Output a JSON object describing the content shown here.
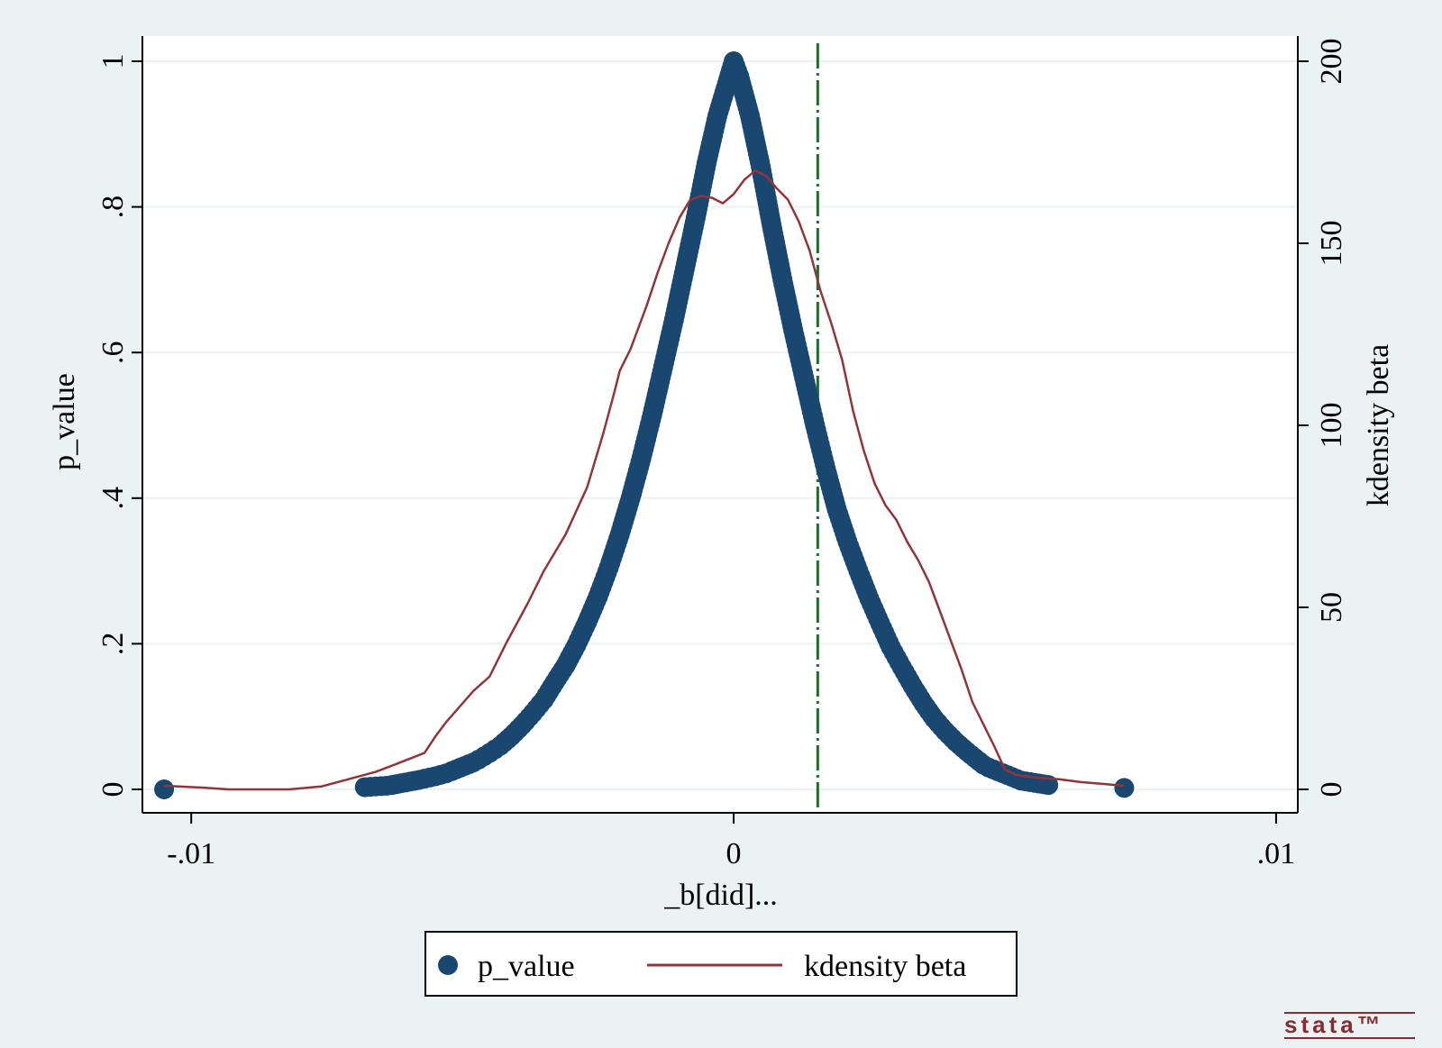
{
  "chart_data": {
    "type": "scatter",
    "xlabel": "_b[did]...",
    "ylabel_left": "p_value",
    "ylabel_right": "kdensity beta",
    "xlim": [
      -0.0109,
      0.0104
    ],
    "ylim_left": [
      0,
      1
    ],
    "ylim_right": [
      0,
      200
    ],
    "x_ticks": [
      {
        "value": -0.01,
        "label": "-.01"
      },
      {
        "value": 0,
        "label": "0"
      },
      {
        "value": 0.01,
        "label": ".01"
      }
    ],
    "y_ticks_left": [
      {
        "value": 0,
        "label": "0"
      },
      {
        "value": 0.2,
        "label": ".2"
      },
      {
        "value": 0.4,
        "label": ".4"
      },
      {
        "value": 0.6,
        "label": ".6"
      },
      {
        "value": 0.8,
        "label": ".8"
      },
      {
        "value": 1,
        "label": "1"
      }
    ],
    "y_ticks_right": [
      {
        "value": 0,
        "label": "0"
      },
      {
        "value": 50,
        "label": "50"
      },
      {
        "value": 100,
        "label": "100"
      },
      {
        "value": 150,
        "label": "150"
      },
      {
        "value": 200,
        "label": "200"
      }
    ],
    "grid": true,
    "reference_line_x": 0.00155,
    "series": [
      {
        "name": "p_value",
        "type": "scatter",
        "axis": "left",
        "color": "#1a476f",
        "points": [
          [
            -0.0105,
            0.0
          ],
          [
            -0.0068,
            0.003
          ],
          [
            -0.0064,
            0.005
          ],
          [
            -0.0063,
            0.006
          ],
          [
            -0.0058,
            0.013
          ],
          [
            -0.0055,
            0.018
          ],
          [
            -0.0053,
            0.022
          ],
          [
            -0.0052,
            0.025
          ],
          [
            -0.0048,
            0.037
          ],
          [
            -0.0047,
            0.041
          ],
          [
            -0.0045,
            0.05
          ],
          [
            -0.0043,
            0.06
          ],
          [
            -0.0041,
            0.073
          ],
          [
            -0.0039,
            0.088
          ],
          [
            -0.0037,
            0.105
          ],
          [
            -0.0035,
            0.123
          ],
          [
            -0.0034,
            0.135
          ],
          [
            -0.0033,
            0.147
          ],
          [
            -0.0031,
            0.17
          ],
          [
            -0.0029,
            0.198
          ],
          [
            -0.0027,
            0.23
          ],
          [
            -0.0025,
            0.265
          ],
          [
            -0.0023,
            0.305
          ],
          [
            -0.0021,
            0.35
          ],
          [
            -0.0019,
            0.4
          ],
          [
            -0.0017,
            0.455
          ],
          [
            -0.0015,
            0.515
          ],
          [
            -0.0013,
            0.58
          ],
          [
            -0.0011,
            0.645
          ],
          [
            -0.0009,
            0.715
          ],
          [
            -0.0007,
            0.785
          ],
          [
            -0.0005,
            0.86
          ],
          [
            -0.0003,
            0.925
          ],
          [
            -0.0001,
            0.975
          ],
          [
            0.0,
            1.0
          ],
          [
            0.0001,
            0.98
          ],
          [
            0.0003,
            0.925
          ],
          [
            0.0005,
            0.855
          ],
          [
            0.0007,
            0.775
          ],
          [
            0.0009,
            0.7
          ],
          [
            0.0011,
            0.63
          ],
          [
            0.0013,
            0.565
          ],
          [
            0.0015,
            0.5
          ],
          [
            0.0017,
            0.44
          ],
          [
            0.0019,
            0.385
          ],
          [
            0.0021,
            0.34
          ],
          [
            0.0023,
            0.3
          ],
          [
            0.0025,
            0.262
          ],
          [
            0.0027,
            0.228
          ],
          [
            0.0029,
            0.195
          ],
          [
            0.0031,
            0.168
          ],
          [
            0.0033,
            0.142
          ],
          [
            0.0035,
            0.118
          ],
          [
            0.0037,
            0.097
          ],
          [
            0.0039,
            0.08
          ],
          [
            0.0041,
            0.065
          ],
          [
            0.0043,
            0.052
          ],
          [
            0.0046,
            0.034
          ],
          [
            0.0047,
            0.03
          ],
          [
            0.0053,
            0.012
          ],
          [
            0.0058,
            0.006
          ],
          [
            0.0072,
            0.002
          ]
        ]
      },
      {
        "name": "kdensity beta",
        "type": "line",
        "axis": "right",
        "color": "#90353b",
        "points": [
          [
            -0.0105,
            1.0
          ],
          [
            -0.0098,
            0.5
          ],
          [
            -0.0093,
            0.0
          ],
          [
            -0.0082,
            0.0
          ],
          [
            -0.0076,
            0.8
          ],
          [
            -0.007,
            3.2
          ],
          [
            -0.0066,
            4.8
          ],
          [
            -0.0063,
            6.5
          ],
          [
            -0.0057,
            10.0
          ],
          [
            -0.0055,
            14.5
          ],
          [
            -0.0053,
            18.5
          ],
          [
            -0.0048,
            27.0
          ],
          [
            -0.0045,
            31.0
          ],
          [
            -0.0042,
            40.0
          ],
          [
            -0.0038,
            51.0
          ],
          [
            -0.0035,
            60.0
          ],
          [
            -0.0031,
            70.0
          ],
          [
            -0.0027,
            83.0
          ],
          [
            -0.0024,
            98.0
          ],
          [
            -0.0022,
            109.0
          ],
          [
            -0.0021,
            115.0
          ],
          [
            -0.0019,
            121.0
          ],
          [
            -0.0018,
            125.0
          ],
          [
            -0.0016,
            133.0
          ],
          [
            -0.0014,
            142.0
          ],
          [
            -0.0012,
            150.0
          ],
          [
            -0.001,
            157.0
          ],
          [
            -0.0008,
            162.0
          ],
          [
            -0.0006,
            163.0
          ],
          [
            -0.0004,
            162.5
          ],
          [
            -0.0002,
            161.0
          ],
          [
            0.0,
            163.5
          ],
          [
            0.0002,
            167.5
          ],
          [
            0.0004,
            170.0
          ],
          [
            0.0006,
            168.5
          ],
          [
            0.0008,
            165.0
          ],
          [
            0.001,
            162.0
          ],
          [
            0.0012,
            156.0
          ],
          [
            0.0014,
            148.0
          ],
          [
            0.0016,
            137.0
          ],
          [
            0.0018,
            128.0
          ],
          [
            0.002,
            118.0
          ],
          [
            0.0022,
            104.0
          ],
          [
            0.0024,
            93.0
          ],
          [
            0.0026,
            84.0
          ],
          [
            0.0028,
            78.0
          ],
          [
            0.003,
            74.0
          ],
          [
            0.0032,
            68.0
          ],
          [
            0.0034,
            63.0
          ],
          [
            0.0036,
            57.0
          ],
          [
            0.0038,
            49.0
          ],
          [
            0.004,
            41.0
          ],
          [
            0.0042,
            33.0
          ],
          [
            0.0044,
            24.0
          ],
          [
            0.0046,
            18.0
          ],
          [
            0.0048,
            12.0
          ],
          [
            0.005,
            5.5
          ],
          [
            0.0052,
            4.0
          ],
          [
            0.0056,
            3.2
          ],
          [
            0.006,
            2.8
          ],
          [
            0.0064,
            2.0
          ],
          [
            0.0068,
            1.5
          ],
          [
            0.0072,
            1.0
          ]
        ]
      }
    ],
    "legend": {
      "position": "bottom",
      "entries": [
        {
          "label": "p_value",
          "marker": "circle",
          "color": "#1a476f"
        },
        {
          "label": "kdensity beta",
          "marker": "line",
          "color": "#90353b"
        }
      ]
    },
    "brand_mark": "stata™"
  },
  "colors": {
    "background": "#eaf2f3",
    "plot_background": "#ffffff",
    "gridline": "#eaf2f3",
    "reference_line": "#1f6b2d"
  }
}
